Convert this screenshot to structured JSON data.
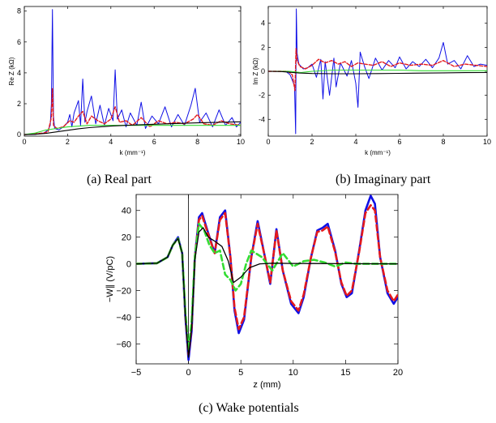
{
  "colors": {
    "blue": "#1010e6",
    "red": "#e41a1c",
    "green": "#33dd33",
    "black": "#000000"
  },
  "captions": {
    "a": "(a)  Real part",
    "b": "(b)  Imaginary part",
    "c": "(c)  Wake potentials"
  },
  "chart_data": [
    {
      "id": "a",
      "type": "line",
      "xlabel": "k (mm⁻¹)",
      "ylabel": "Re Z (kΩ)",
      "xlim": [
        0,
        10
      ],
      "ylim": [
        -0.1,
        8.3
      ],
      "xticks": [
        "0",
        "2",
        "4",
        "6",
        "8",
        "10"
      ],
      "yticks": [
        "0",
        "2",
        "4",
        "6",
        "8"
      ],
      "series": [
        {
          "color": "blue",
          "x": [
            0.0,
            0.5,
            0.9,
            1.1,
            1.2,
            1.25,
            1.3,
            1.35,
            1.4,
            1.6,
            1.8,
            2.0,
            2.1,
            2.2,
            2.3,
            2.5,
            2.6,
            2.7,
            2.8,
            2.9,
            3.1,
            3.3,
            3.5,
            3.7,
            3.9,
            4.1,
            4.2,
            4.3,
            4.5,
            4.7,
            4.9,
            5.2,
            5.4,
            5.6,
            5.9,
            6.2,
            6.5,
            6.8,
            7.1,
            7.4,
            7.7,
            7.9,
            8.1,
            8.4,
            8.7,
            9.0,
            9.3,
            9.6,
            9.8,
            10.0
          ],
          "y": [
            0.0,
            0.02,
            0.1,
            0.3,
            0.6,
            2.0,
            8.1,
            1.2,
            0.4,
            0.3,
            0.5,
            0.8,
            1.3,
            0.5,
            1.4,
            2.2,
            0.6,
            3.6,
            0.8,
            1.5,
            2.5,
            0.7,
            1.9,
            0.6,
            1.7,
            0.9,
            4.2,
            1.0,
            1.6,
            0.5,
            1.4,
            0.6,
            2.1,
            0.4,
            1.2,
            0.7,
            1.8,
            0.5,
            1.3,
            0.6,
            1.9,
            3.0,
            0.8,
            1.4,
            0.5,
            1.6,
            0.6,
            1.1,
            0.5,
            0.8
          ]
        },
        {
          "color": "red",
          "x": [
            0.0,
            0.9,
            1.1,
            1.25,
            1.3,
            1.35,
            1.5,
            1.8,
            2.1,
            2.3,
            2.5,
            2.7,
            2.9,
            3.1,
            3.4,
            3.7,
            4.0,
            4.2,
            4.4,
            4.7,
            5.0,
            5.4,
            5.8,
            6.2,
            6.6,
            7.0,
            7.4,
            7.8,
            8.0,
            8.3,
            8.7,
            9.1,
            9.5,
            10.0
          ],
          "y": [
            0.0,
            0.1,
            0.2,
            1.1,
            3.0,
            0.6,
            0.4,
            0.5,
            0.9,
            0.8,
            1.2,
            1.5,
            0.7,
            1.2,
            0.9,
            0.7,
            1.0,
            1.8,
            0.8,
            0.9,
            0.6,
            1.1,
            0.5,
            0.9,
            0.7,
            0.8,
            0.7,
            1.0,
            1.3,
            0.7,
            0.6,
            0.9,
            0.7,
            0.6
          ]
        },
        {
          "color": "green",
          "x": [
            0.0,
            0.5,
            1.0,
            1.5,
            2.0,
            3.0,
            4.0,
            5.0,
            6.0,
            7.0,
            8.0,
            9.0,
            10.0
          ],
          "y": [
            0.0,
            0.1,
            0.3,
            0.4,
            0.5,
            0.6,
            0.6,
            0.6,
            0.6,
            0.6,
            0.6,
            0.6,
            0.6
          ]
        },
        {
          "color": "black",
          "x": [
            0.0,
            0.5,
            1.0,
            1.5,
            2.0,
            2.5,
            3.0,
            4.0,
            5.0,
            6.0,
            7.0,
            8.0,
            9.0,
            10.0
          ],
          "y": [
            0.0,
            0.02,
            0.08,
            0.18,
            0.28,
            0.38,
            0.45,
            0.55,
            0.62,
            0.67,
            0.72,
            0.76,
            0.8,
            0.83
          ]
        }
      ]
    },
    {
      "id": "b",
      "type": "line",
      "xlabel": "k (mm⁻¹)",
      "ylabel": "Im Z (kΩ)",
      "xlim": [
        0,
        10
      ],
      "ylim": [
        -5.4,
        5.4
      ],
      "xticks": [
        "0",
        "2",
        "4",
        "6",
        "8",
        "10"
      ],
      "yticks": [
        "-4",
        "-2",
        "0",
        "2",
        "4"
      ],
      "series": [
        {
          "color": "blue",
          "x": [
            0.0,
            0.8,
            1.0,
            1.2,
            1.25,
            1.28,
            1.32,
            1.4,
            1.6,
            1.8,
            2.0,
            2.2,
            2.4,
            2.5,
            2.6,
            2.8,
            3.0,
            3.1,
            3.3,
            3.6,
            3.8,
            4.0,
            4.1,
            4.2,
            4.4,
            4.6,
            4.9,
            5.2,
            5.5,
            5.8,
            6.0,
            6.3,
            6.6,
            6.9,
            7.2,
            7.5,
            7.8,
            8.0,
            8.2,
            8.5,
            8.8,
            9.1,
            9.4,
            9.7,
            10.0
          ],
          "y": [
            0.0,
            0.0,
            -0.3,
            -1.2,
            -5.2,
            5.2,
            1.5,
            0.6,
            0.2,
            0.3,
            0.6,
            -0.5,
            1.0,
            -2.3,
            0.8,
            -2.0,
            1.1,
            -1.3,
            0.7,
            -0.4,
            0.9,
            -1.0,
            -3.0,
            1.6,
            0.4,
            -0.6,
            1.1,
            0.1,
            0.9,
            0.3,
            1.2,
            0.2,
            0.8,
            0.4,
            1.0,
            0.3,
            1.1,
            2.4,
            0.6,
            0.9,
            0.2,
            1.3,
            0.4,
            0.6,
            0.5
          ]
        },
        {
          "color": "red",
          "x": [
            0.0,
            0.9,
            1.1,
            1.22,
            1.27,
            1.32,
            1.45,
            1.7,
            2.0,
            2.3,
            2.6,
            2.9,
            3.2,
            3.5,
            3.8,
            4.1,
            4.4,
            4.8,
            5.2,
            5.6,
            6.0,
            6.5,
            7.0,
            7.5,
            8.0,
            8.5,
            9.0,
            9.5,
            10.0
          ],
          "y": [
            0.0,
            0.0,
            -0.3,
            -1.6,
            1.9,
            0.9,
            0.4,
            0.2,
            0.5,
            1.0,
            0.7,
            0.9,
            0.6,
            0.8,
            0.4,
            0.7,
            0.6,
            0.5,
            0.8,
            0.4,
            0.7,
            0.5,
            0.6,
            0.5,
            0.9,
            0.4,
            0.6,
            0.5,
            0.4
          ]
        },
        {
          "color": "green",
          "x": [
            0.0,
            1.0,
            1.5,
            2.0,
            3.0,
            4.0,
            5.0,
            6.0,
            7.0,
            8.0,
            9.0,
            10.0
          ],
          "y": [
            0.0,
            0.0,
            -0.1,
            0.0,
            0.1,
            0.1,
            0.1,
            0.1,
            0.05,
            0.05,
            0.05,
            0.05
          ]
        },
        {
          "color": "black",
          "x": [
            0.0,
            0.6,
            1.0,
            1.4,
            2.0,
            3.0,
            4.0,
            5.0,
            6.0,
            7.0,
            8.0,
            9.0,
            10.0
          ],
          "y": [
            0.0,
            -0.02,
            -0.08,
            -0.14,
            -0.18,
            -0.2,
            -0.2,
            -0.19,
            -0.17,
            -0.15,
            -0.13,
            -0.11,
            -0.1
          ]
        }
      ]
    },
    {
      "id": "c",
      "type": "line",
      "xlabel": "z (mm)",
      "ylabel": "−W∥ (V/pC)",
      "xlim": [
        -5,
        20
      ],
      "ylim": [
        -75,
        52
      ],
      "xticks": [
        "−5",
        "0",
        "5",
        "10",
        "15",
        "20"
      ],
      "yticks": [
        "−60",
        "−40",
        "−20",
        "0",
        "20",
        "40"
      ],
      "series": [
        {
          "color": "blue",
          "dash": false,
          "x": [
            -5,
            -3,
            -2,
            -1.5,
            -1,
            -0.6,
            -0.3,
            0,
            0.3,
            0.6,
            1,
            1.3,
            1.8,
            2.5,
            3,
            3.5,
            4,
            4.4,
            4.8,
            5.3,
            6,
            6.6,
            7.3,
            7.8,
            8.4,
            9,
            9.8,
            10.5,
            11,
            11.7,
            12.3,
            12.8,
            13.3,
            14,
            14.6,
            15.1,
            15.6,
            16.3,
            16.9,
            17.4,
            17.8,
            18.3,
            19,
            19.6,
            20
          ],
          "y": [
            0,
            0.5,
            5,
            14,
            20,
            8,
            -40,
            -72,
            -50,
            5,
            35,
            38,
            25,
            8,
            35,
            40,
            5,
            -35,
            -52,
            -42,
            5,
            32,
            5,
            -15,
            26,
            -5,
            -30,
            -37,
            -25,
            5,
            25,
            27,
            30,
            10,
            -15,
            -25,
            -22,
            10,
            40,
            51,
            45,
            5,
            -22,
            -30,
            -25
          ]
        },
        {
          "color": "red",
          "dash": true,
          "x": [
            -5,
            -3,
            -2,
            -1.5,
            -1,
            -0.6,
            -0.3,
            0,
            0.3,
            0.6,
            1,
            1.3,
            1.8,
            2.5,
            3,
            3.5,
            4,
            4.4,
            4.8,
            5.3,
            6,
            6.6,
            7.3,
            7.8,
            8.4,
            9,
            9.8,
            10.5,
            11,
            11.7,
            12.3,
            12.8,
            13.3,
            14,
            14.6,
            15.1,
            15.6,
            16.3,
            16.9,
            17.4,
            17.8,
            18.3,
            19,
            19.6,
            20
          ],
          "y": [
            0,
            0.5,
            5,
            14,
            19,
            8,
            -38,
            -68,
            -47,
            5,
            33,
            36,
            24,
            8,
            33,
            38,
            5,
            -33,
            -49,
            -40,
            5,
            30,
            5,
            -14,
            25,
            -5,
            -28,
            -35,
            -23,
            5,
            24,
            25,
            28,
            9,
            -14,
            -24,
            -20,
            9,
            38,
            44,
            40,
            5,
            -20,
            -28,
            -23
          ]
        },
        {
          "color": "green",
          "dash": true,
          "x": [
            -5,
            -3,
            -2,
            -1.5,
            -1,
            -0.6,
            -0.3,
            0,
            0.3,
            0.6,
            1,
            1.5,
            2,
            2.5,
            3,
            3.5,
            4,
            4.5,
            5,
            5.5,
            6,
            7,
            8,
            9,
            10,
            11,
            12,
            13,
            14,
            15,
            16,
            17,
            18,
            19,
            20
          ],
          "y": [
            0,
            0.5,
            5,
            14,
            19,
            8,
            -36,
            -65,
            -43,
            5,
            30,
            25,
            14,
            8,
            10,
            -8,
            -12,
            -20,
            -15,
            0,
            10,
            5,
            -5,
            8,
            -2,
            2,
            3,
            1,
            -2,
            1,
            0,
            0,
            0,
            0,
            0
          ]
        },
        {
          "color": "black",
          "dash": false,
          "x": [
            -5,
            -3,
            -2,
            -1.5,
            -1,
            -0.6,
            -0.3,
            0,
            0.3,
            0.6,
            1,
            1.4,
            1.9,
            2.5,
            3.2,
            3.8,
            4.3,
            5,
            5.8,
            6.8,
            8,
            10,
            12,
            15,
            20
          ],
          "y": [
            0,
            0.5,
            5,
            14,
            19,
            8,
            -38,
            -70,
            -48,
            3,
            24,
            27,
            20,
            17,
            13,
            2,
            -14,
            -10,
            -3,
            0,
            0.5,
            0.3,
            0.2,
            0.1,
            0
          ]
        }
      ]
    }
  ]
}
